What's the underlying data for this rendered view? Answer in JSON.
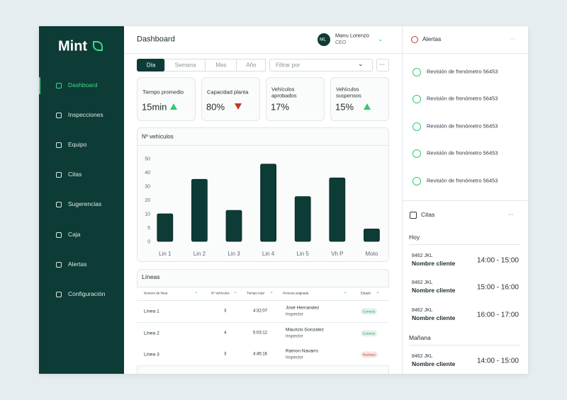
{
  "sidebar": {
    "logo": "Mint",
    "nav": [
      "Dashboard",
      "Inspecciones",
      "Equipo",
      "Citas",
      "Sugerencias",
      "Caja",
      "Alertas",
      "Configuración"
    ],
    "active": 0
  },
  "header": {
    "title": "Dashboard",
    "avatar": "ML",
    "user": "Manu Lorenzo",
    "role": "CEO"
  },
  "tabs": {
    "items": [
      "Día",
      "Semana",
      "Mes",
      "Año"
    ],
    "active": 0
  },
  "filter": "Filtrar por",
  "kpis": [
    {
      "label": "Tiempo promedio",
      "value": "15min",
      "trend": "up",
      "color": "#2ecc71"
    },
    {
      "label": "Capacidad planta",
      "value": "80%",
      "trend": "down",
      "color": "#c0392b"
    },
    {
      "label": "Vehículos aprobados",
      "value": "17%"
    },
    {
      "label": "Vehículos suspensos",
      "value": "15%",
      "trend": "up",
      "color": "#2ecc71"
    }
  ],
  "chart_data": {
    "type": "bar",
    "title": "Nº vehículos",
    "categories": [
      "Lin 1",
      "Lin 2",
      "Lin 3",
      "Lin 4",
      "Lin 5",
      "Vh P",
      "Moto"
    ],
    "values": [
      10,
      35,
      12.5,
      46,
      22.5,
      36,
      4.5
    ],
    "color": "#0d3b36",
    "ylim": [
      0,
      50
    ],
    "yticks": [
      0,
      5,
      10,
      20,
      30,
      40,
      50
    ],
    "grid": false
  },
  "table": {
    "title": "Líneas",
    "headers": [
      "Numero de línea",
      "Nº Vehículos",
      "Tiempo total",
      "Persona asignada",
      "Estado"
    ],
    "rows": [
      {
        "line": "Línea 1",
        "vehicles": "3",
        "time": "4:32:07",
        "person": "José Hernandez",
        "role": "Inspector",
        "status": "Correcto",
        "color": "#1e9e5a"
      },
      {
        "line": "Línea 2",
        "vehicles": "4",
        "time": "5:03:12",
        "person": "Mauricio Gonzalez",
        "role": "Inspector",
        "status": "Correcto",
        "color": "#1e9e5a"
      },
      {
        "line": "Línea 3",
        "vehicles": "3",
        "time": "4:45:16",
        "person": "Ramon Navarro",
        "role": "Inspector",
        "status": "Rechazo",
        "color": "#c0392b"
      }
    ]
  },
  "alerts": {
    "title": "Alertas",
    "items": [
      "Revisión de frenómetro 56453",
      "Revisión de frenómetro 56453",
      "Revisión de frenómetro 56453",
      "Revisión de frenómetro 56453",
      "Revisión de frenómetro 56453"
    ]
  },
  "appointments": {
    "title": "Citas",
    "groups": [
      {
        "day": "Hoy",
        "items": [
          {
            "plate": "8462 JKL",
            "client": "Nombre cliente",
            "time": "14:00 - 15:00"
          },
          {
            "plate": "8462 JKL",
            "client": "Nombre cliente",
            "time": "15:00 - 16:00"
          },
          {
            "plate": "8462 JKL",
            "client": "Nombre cliente",
            "time": "16:00 - 17:00"
          }
        ]
      },
      {
        "day": "Mañana",
        "items": [
          {
            "plate": "8462 JKL",
            "client": "Nombre cliente",
            "time": "14:00 - 15:00"
          }
        ]
      }
    ]
  }
}
